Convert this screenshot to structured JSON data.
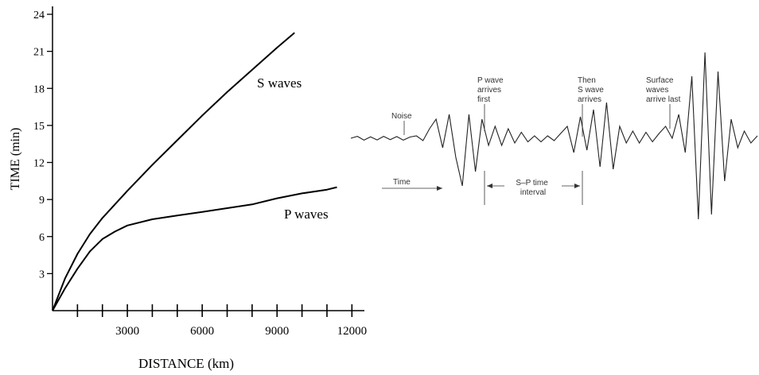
{
  "chart_data": [
    {
      "type": "line",
      "xlabel": "DISTANCE (km)",
      "ylabel": "TIME (min)",
      "xlim": [
        0,
        12500
      ],
      "ylim": [
        0,
        24
      ],
      "x_ticks": [
        3000,
        6000,
        9000,
        12000
      ],
      "y_ticks": [
        3,
        6,
        9,
        12,
        15,
        18,
        21,
        24
      ],
      "grid": false,
      "series": [
        {
          "name": "S waves",
          "x": [
            0,
            500,
            1000,
            1500,
            2000,
            3000,
            4000,
            5000,
            6000,
            7000,
            8000,
            9000,
            9700
          ],
          "values": [
            0,
            2.6,
            4.6,
            6.2,
            7.5,
            9.7,
            11.8,
            13.8,
            15.8,
            17.7,
            19.5,
            21.3,
            22.5
          ]
        },
        {
          "name": "P waves",
          "x": [
            0,
            500,
            1000,
            1500,
            2000,
            2500,
            3000,
            4000,
            5000,
            6000,
            7000,
            8000,
            9000,
            10000,
            11000,
            11400
          ],
          "values": [
            0,
            1.8,
            3.4,
            4.8,
            5.8,
            6.4,
            6.9,
            7.4,
            7.7,
            8.0,
            8.3,
            8.6,
            9.1,
            9.5,
            9.8,
            10.0
          ]
        }
      ]
    },
    {
      "type": "line",
      "series": [
        {
          "values": [
            0.0,
            0.08,
            -0.08,
            0.06,
            -0.07,
            0.08,
            -0.06,
            0.07,
            -0.08,
            0.05,
            0.1,
            -0.1,
            0.4,
            0.8,
            -0.4,
            1.0,
            -0.8,
            -2.0,
            1.0,
            -1.4,
            0.8,
            -0.3,
            0.5,
            -0.3,
            0.4,
            -0.2,
            0.25,
            -0.15,
            0.1,
            -0.15,
            0.1,
            -0.1,
            0.2,
            0.5,
            -0.6,
            0.9,
            -0.5,
            1.2,
            -1.2,
            1.5,
            -1.3,
            0.5,
            -0.2,
            0.3,
            -0.2,
            0.25,
            -0.15,
            0.2,
            0.5,
            0.0,
            1.0,
            -0.6,
            2.6,
            -3.4,
            3.6,
            -3.2,
            2.8,
            -1.8,
            0.8,
            -0.4,
            0.3,
            -0.2,
            0.1
          ]
        }
      ]
    }
  ],
  "seismogram": {
    "labels": {
      "noise": "Noise",
      "p_wave": [
        "P wave",
        "arrives",
        "first"
      ],
      "s_wave": [
        "Then",
        "S wave",
        "arrives"
      ],
      "surface": [
        "Surface",
        "waves",
        "arrive last"
      ],
      "time": "Time",
      "interval": [
        "S–P time",
        "interval"
      ]
    }
  }
}
